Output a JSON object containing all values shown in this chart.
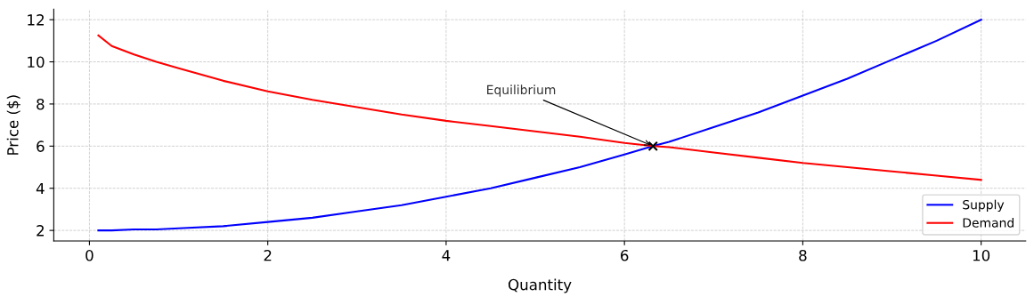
{
  "chart_data": {
    "type": "line",
    "xlabel": "Quantity",
    "ylabel": "Price ($)",
    "x": [
      0.1,
      0.25,
      0.5,
      0.75,
      1,
      1.5,
      2,
      2.5,
      3,
      3.5,
      4,
      4.5,
      5,
      5.5,
      6,
      6.32,
      6.5,
      7,
      7.5,
      8,
      8.5,
      9,
      9.5,
      10
    ],
    "series": [
      {
        "name": "Supply",
        "color": "#0000ff",
        "values": [
          2.0,
          2.0,
          2.05,
          2.05,
          2.1,
          2.2,
          2.4,
          2.6,
          2.9,
          3.2,
          3.6,
          4.0,
          4.5,
          5.0,
          5.6,
          6.0,
          6.2,
          6.9,
          7.6,
          8.4,
          9.2,
          10.1,
          11.0,
          12.0
        ]
      },
      {
        "name": "Demand",
        "color": "#ff0000",
        "values": [
          11.25,
          10.75,
          10.35,
          10.0,
          9.7,
          9.1,
          8.6,
          8.2,
          7.85,
          7.5,
          7.2,
          6.95,
          6.7,
          6.45,
          6.15,
          6.0,
          5.95,
          5.7,
          5.45,
          5.2,
          5.0,
          4.8,
          4.6,
          4.4
        ]
      },
      {
        "type": "scatter",
        "marker": "cross",
        "color": "#000000",
        "x": [
          6.32
        ],
        "values": [
          6.0
        ]
      }
    ],
    "annotations": [
      {
        "text": "Equilibrium",
        "x": 6.32,
        "y": 6.0
      }
    ],
    "xlim": [
      -0.4,
      10.5
    ],
    "ylim": [
      1.5,
      12.5
    ],
    "xticks": [
      0,
      2,
      4,
      6,
      8,
      10
    ],
    "yticks": [
      2,
      4,
      6,
      8,
      10,
      12
    ],
    "grid": true,
    "line_style": "solid",
    "legend": "bottom right"
  }
}
